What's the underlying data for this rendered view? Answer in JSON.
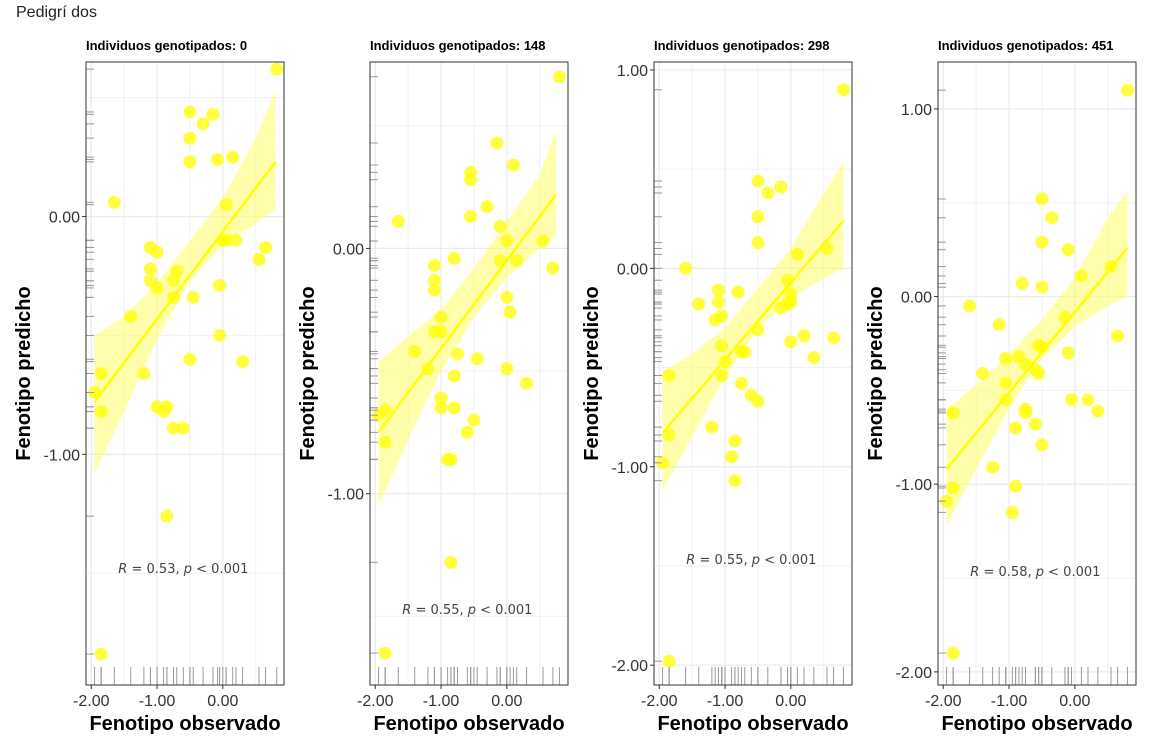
{
  "page_title": "Pedigrí dos",
  "colors": {
    "point": "#ffff00",
    "line": "#ffff00",
    "band": "#ffff66",
    "grid": "#ebebeb",
    "frame": "#333333",
    "rug": "#9a9a9a"
  },
  "chart_data": [
    {
      "type": "scatter",
      "title": "Individuos genotipados: 0",
      "xlabel": "Fenotipo observado",
      "ylabel": "Fenotipo predicho",
      "xlim": [
        -2.08,
        0.93
      ],
      "ylim": [
        -1.97,
        0.65
      ],
      "xticks": [
        "-2.00",
        "-1.00",
        "0.00"
      ],
      "yticks": [
        "-1.00",
        "0.00"
      ],
      "xtick_values": [
        -2,
        -1,
        0
      ],
      "ytick_values": [
        -1,
        0
      ],
      "annotation": {
        "r": "0.53",
        "p": "0.001",
        "x": -0.6,
        "y": -1.5
      },
      "fit": {
        "x0": -1.95,
        "y0": -0.78,
        "x1": 0.8,
        "y1": 0.23
      },
      "band": {
        "x": [
          -1.95,
          -1.5,
          -1.0,
          -0.5,
          0.0,
          0.5,
          0.8
        ],
        "lower": [
          -1.08,
          -0.82,
          -0.52,
          -0.27,
          -0.12,
          -0.03,
          0.03
        ],
        "upper": [
          -0.5,
          -0.42,
          -0.28,
          -0.1,
          0.08,
          0.33,
          0.53
        ]
      },
      "points": [
        [
          0.82,
          0.62
        ],
        [
          -0.5,
          0.44
        ],
        [
          -0.15,
          0.43
        ],
        [
          -0.3,
          0.39
        ],
        [
          -0.5,
          0.33
        ],
        [
          -0.5,
          0.23
        ],
        [
          -0.08,
          0.24
        ],
        [
          0.15,
          0.25
        ],
        [
          -1.65,
          0.06
        ],
        [
          0.05,
          0.05
        ],
        [
          0.0,
          -0.1
        ],
        [
          0.2,
          -0.1
        ],
        [
          0.05,
          -0.1
        ],
        [
          0.65,
          -0.13
        ],
        [
          -1.1,
          -0.13
        ],
        [
          -1.0,
          -0.15
        ],
        [
          0.55,
          -0.18
        ],
        [
          -1.1,
          -0.22
        ],
        [
          -0.7,
          -0.23
        ],
        [
          -1.1,
          -0.27
        ],
        [
          -0.75,
          -0.27
        ],
        [
          -1.0,
          -0.3
        ],
        [
          -0.05,
          -0.29
        ],
        [
          -0.45,
          -0.34
        ],
        [
          -0.75,
          -0.34
        ],
        [
          -1.4,
          -0.42
        ],
        [
          -0.05,
          -0.5
        ],
        [
          -0.5,
          -0.6
        ],
        [
          0.3,
          -0.61
        ],
        [
          -1.2,
          -0.66
        ],
        [
          -1.85,
          -0.66
        ],
        [
          -1.95,
          -0.74
        ],
        [
          -1.85,
          -0.82
        ],
        [
          -1.0,
          -0.8
        ],
        [
          -0.85,
          -0.8
        ],
        [
          -0.9,
          -0.82
        ],
        [
          -0.75,
          -0.89
        ],
        [
          -0.6,
          -0.89
        ],
        [
          -0.85,
          -1.26
        ],
        [
          -1.85,
          -1.84
        ]
      ]
    },
    {
      "type": "scatter",
      "title": "Individuos genotipados: 148",
      "xlabel": "Fenotipo observado",
      "ylabel": "Fenotipo predicho",
      "xlim": [
        -2.08,
        0.93
      ],
      "ylim": [
        -1.78,
        0.76
      ],
      "xticks": [
        "-2.00",
        "-1.00",
        "0.00"
      ],
      "yticks": [
        "-1.00",
        "0.00"
      ],
      "xtick_values": [
        -2,
        -1,
        0
      ],
      "ytick_values": [
        -1,
        0
      ],
      "annotation": {
        "r": "0.55",
        "p": "0.001",
        "x": -0.6,
        "y": -1.49
      },
      "fit": {
        "x0": -1.95,
        "y0": -0.75,
        "x1": 0.75,
        "y1": 0.22
      },
      "band": {
        "x": [
          -1.95,
          -1.5,
          -1.0,
          -0.5,
          0.0,
          0.5,
          0.75
        ],
        "lower": [
          -1.05,
          -0.78,
          -0.5,
          -0.28,
          -0.12,
          0.0,
          0.05
        ],
        "upper": [
          -0.46,
          -0.36,
          -0.25,
          -0.08,
          0.11,
          0.3,
          0.48
        ]
      },
      "points": [
        [
          0.8,
          0.7
        ],
        [
          -0.15,
          0.43
        ],
        [
          0.1,
          0.34
        ],
        [
          -0.55,
          0.31
        ],
        [
          -0.55,
          0.28
        ],
        [
          -1.65,
          0.11
        ],
        [
          -0.3,
          0.17
        ],
        [
          -0.55,
          0.13
        ],
        [
          -0.1,
          0.09
        ],
        [
          0.0,
          0.03
        ],
        [
          0.55,
          0.03
        ],
        [
          -0.8,
          -0.04
        ],
        [
          -0.1,
          -0.05
        ],
        [
          0.15,
          -0.05
        ],
        [
          -1.1,
          -0.07
        ],
        [
          0.7,
          -0.08
        ],
        [
          -1.1,
          -0.13
        ],
        [
          -1.1,
          -0.17
        ],
        [
          0.0,
          -0.2
        ],
        [
          -1.0,
          -0.28
        ],
        [
          0.05,
          -0.26
        ],
        [
          -1.1,
          -0.34
        ],
        [
          -1.0,
          -0.34
        ],
        [
          -1.4,
          -0.42
        ],
        [
          -0.75,
          -0.43
        ],
        [
          -0.45,
          -0.45
        ],
        [
          -1.2,
          -0.49
        ],
        [
          0.0,
          -0.49
        ],
        [
          -0.8,
          -0.52
        ],
        [
          0.3,
          -0.55
        ],
        [
          -1.0,
          -0.61
        ],
        [
          -1.0,
          -0.65
        ],
        [
          -0.8,
          -0.65
        ],
        [
          -1.85,
          -0.66
        ],
        [
          -1.95,
          -0.68
        ],
        [
          -0.5,
          -0.7
        ],
        [
          -0.6,
          -0.75
        ],
        [
          -1.85,
          -0.79
        ],
        [
          -0.9,
          -0.86
        ],
        [
          -0.85,
          -0.86
        ],
        [
          -0.85,
          -1.28
        ],
        [
          -1.85,
          -1.65
        ]
      ]
    },
    {
      "type": "scatter",
      "title": "Individuos genotipados: 298",
      "xlabel": "Fenotipo observado",
      "ylabel": "Fenotipo predicho",
      "xlim": [
        -2.08,
        0.93
      ],
      "ylim": [
        -2.1,
        1.04
      ],
      "xticks": [
        "-2.00",
        "-1.00",
        "0.00"
      ],
      "yticks": [
        "-2.00",
        "-1.00",
        "0.00",
        "1.00"
      ],
      "xtick_values": [
        -2,
        -1,
        0
      ],
      "ytick_values": [
        -2,
        -1,
        0,
        1
      ],
      "annotation": {
        "r": "0.55",
        "p": "0.001",
        "x": -0.6,
        "y": -1.49
      },
      "fit": {
        "x0": -1.95,
        "y0": -0.83,
        "x1": 0.8,
        "y1": 0.24
      },
      "band": {
        "x": [
          -1.95,
          -1.5,
          -1.0,
          -0.5,
          0.0,
          0.5,
          0.8
        ],
        "lower": [
          -1.12,
          -0.85,
          -0.55,
          -0.3,
          -0.15,
          -0.05,
          0.0
        ],
        "upper": [
          -0.52,
          -0.43,
          -0.3,
          -0.1,
          0.1,
          0.38,
          0.54
        ]
      },
      "points": [
        [
          0.8,
          0.9
        ],
        [
          -0.5,
          0.44
        ],
        [
          -0.15,
          0.41
        ],
        [
          -0.35,
          0.38
        ],
        [
          -0.5,
          0.26
        ],
        [
          -0.5,
          0.13
        ],
        [
          0.1,
          0.07
        ],
        [
          0.55,
          0.1
        ],
        [
          -1.6,
          0.0
        ],
        [
          -0.05,
          -0.06
        ],
        [
          -1.1,
          -0.11
        ],
        [
          0.0,
          -0.13
        ],
        [
          -0.8,
          -0.12
        ],
        [
          -1.1,
          -0.17
        ],
        [
          -0.05,
          -0.18
        ],
        [
          0.0,
          -0.17
        ],
        [
          -1.4,
          -0.18
        ],
        [
          -1.05,
          -0.24
        ],
        [
          -0.15,
          -0.2
        ],
        [
          -1.15,
          -0.26
        ],
        [
          -0.5,
          -0.31
        ],
        [
          0.2,
          -0.34
        ],
        [
          0.65,
          -0.35
        ],
        [
          0.0,
          -0.37
        ],
        [
          -1.05,
          -0.39
        ],
        [
          -0.75,
          -0.42
        ],
        [
          -0.7,
          -0.42
        ],
        [
          -1.0,
          -0.47
        ],
        [
          0.35,
          -0.45
        ],
        [
          -1.05,
          -0.54
        ],
        [
          -1.85,
          -0.54
        ],
        [
          -0.75,
          -0.58
        ],
        [
          -0.6,
          -0.64
        ],
        [
          -0.5,
          -0.67
        ],
        [
          -1.2,
          -0.8
        ],
        [
          -1.85,
          -0.84
        ],
        [
          -0.85,
          -0.87
        ],
        [
          -0.9,
          -0.95
        ],
        [
          -1.95,
          -0.98
        ],
        [
          -0.85,
          -1.07
        ],
        [
          -1.85,
          -1.98
        ]
      ]
    },
    {
      "type": "scatter",
      "title": "Individuos genotipados: 451",
      "xlabel": "Fenotipo observado",
      "ylabel": "Fenotipo predicho",
      "xlim": [
        -2.08,
        0.93
      ],
      "ylim": [
        -2.07,
        1.25
      ],
      "xticks": [
        "-2.00",
        "-1.00",
        "0.00"
      ],
      "yticks": [
        "-2.00",
        "-1.00",
        "0.00",
        "1.00"
      ],
      "xtick_values": [
        -2,
        -1,
        0
      ],
      "ytick_values": [
        -2,
        -1,
        0,
        1
      ],
      "annotation": {
        "r": "0.58",
        "p": "0.001",
        "x": -0.6,
        "y": -1.49
      },
      "fit": {
        "x0": -1.95,
        "y0": -0.92,
        "x1": 0.8,
        "y1": 0.26
      },
      "band": {
        "x": [
          -1.95,
          -1.5,
          -1.0,
          -0.5,
          0.0,
          0.5,
          0.8
        ],
        "lower": [
          -1.22,
          -0.92,
          -0.6,
          -0.33,
          -0.16,
          -0.05,
          0.0
        ],
        "upper": [
          -0.6,
          -0.47,
          -0.31,
          -0.12,
          0.1,
          0.42,
          0.56
        ]
      },
      "points": [
        [
          0.8,
          1.1
        ],
        [
          -0.5,
          0.52
        ],
        [
          -0.35,
          0.42
        ],
        [
          -0.5,
          0.29
        ],
        [
          -0.1,
          0.25
        ],
        [
          0.55,
          0.16
        ],
        [
          0.1,
          0.11
        ],
        [
          -0.8,
          0.07
        ],
        [
          -0.5,
          0.05
        ],
        [
          -1.6,
          -0.05
        ],
        [
          -0.15,
          -0.11
        ],
        [
          -1.15,
          -0.15
        ],
        [
          -0.5,
          -0.27
        ],
        [
          -0.1,
          -0.3
        ],
        [
          -0.55,
          -0.26
        ],
        [
          -0.85,
          -0.32
        ],
        [
          -1.05,
          -0.33
        ],
        [
          -0.75,
          -0.36
        ],
        [
          -1.4,
          -0.41
        ],
        [
          -0.55,
          -0.41
        ],
        [
          -1.05,
          -0.46
        ],
        [
          -0.6,
          -0.39
        ],
        [
          0.2,
          -0.55
        ],
        [
          0.35,
          -0.61
        ],
        [
          0.65,
          -0.21
        ],
        [
          -0.05,
          -0.55
        ],
        [
          -1.05,
          -0.55
        ],
        [
          -0.75,
          -0.6
        ],
        [
          -0.75,
          -0.62
        ],
        [
          -1.85,
          -0.62
        ],
        [
          -0.6,
          -0.68
        ],
        [
          -0.9,
          -0.7
        ],
        [
          -0.5,
          -0.79
        ],
        [
          -1.25,
          -0.91
        ],
        [
          -1.85,
          -1.02
        ],
        [
          -0.9,
          -1.01
        ],
        [
          -0.95,
          -1.15
        ],
        [
          -1.95,
          -1.09
        ],
        [
          -1.85,
          -1.9
        ]
      ]
    }
  ]
}
